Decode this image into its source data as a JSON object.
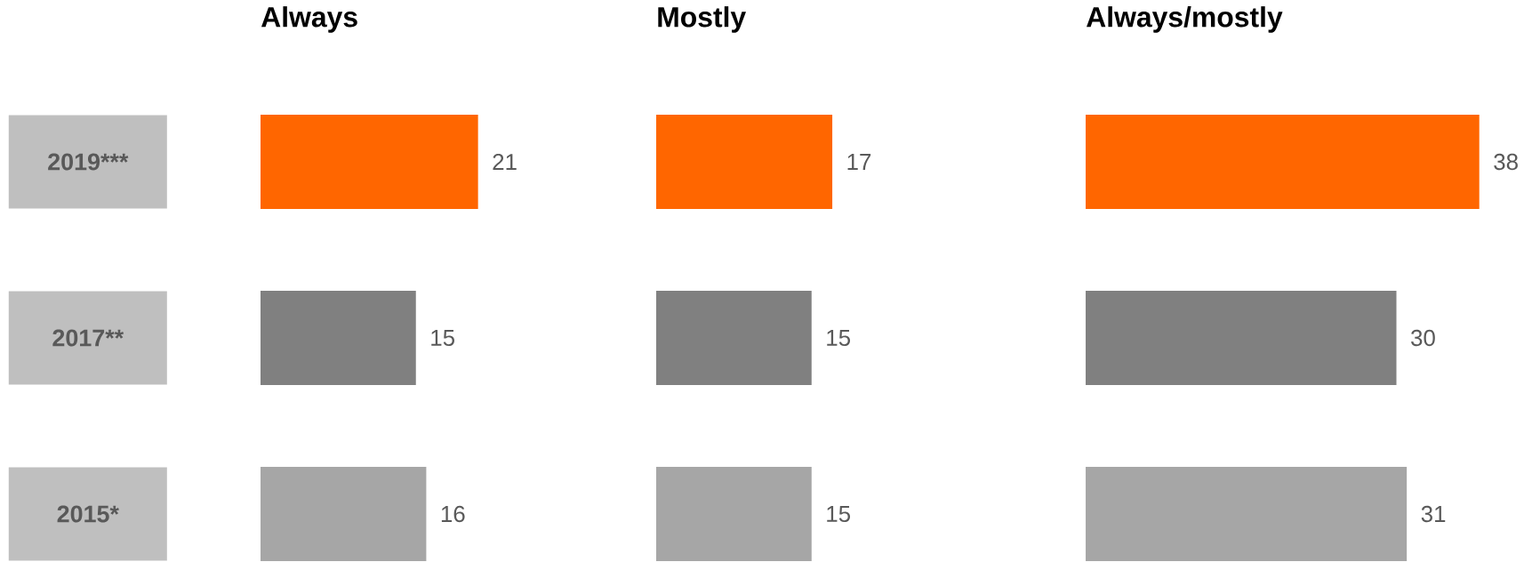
{
  "chart_data": [
    {
      "type": "bar",
      "orientation": "horizontal",
      "title": "Always",
      "categories": [
        "2019***",
        "2017**",
        "2015*"
      ],
      "values": [
        21,
        15,
        16
      ],
      "colors": [
        "#ff6600",
        "#808080",
        "#a6a6a6"
      ],
      "data_labels": true,
      "tick_labels": "y"
    },
    {
      "type": "bar",
      "orientation": "horizontal",
      "title": "Mostly",
      "values": [
        17,
        15,
        15
      ],
      "colors": [
        "#ff6600",
        "#808080",
        "#a6a6a6"
      ],
      "data_labels": true,
      "tick_labels": false
    },
    {
      "type": "bar",
      "orientation": "horizontal",
      "title": "Always/mostly",
      "values": [
        38,
        30,
        31
      ],
      "colors": [
        "#ff6600",
        "#808080",
        "#a6a6a6"
      ],
      "data_labels": true,
      "tick_labels": false
    }
  ]
}
